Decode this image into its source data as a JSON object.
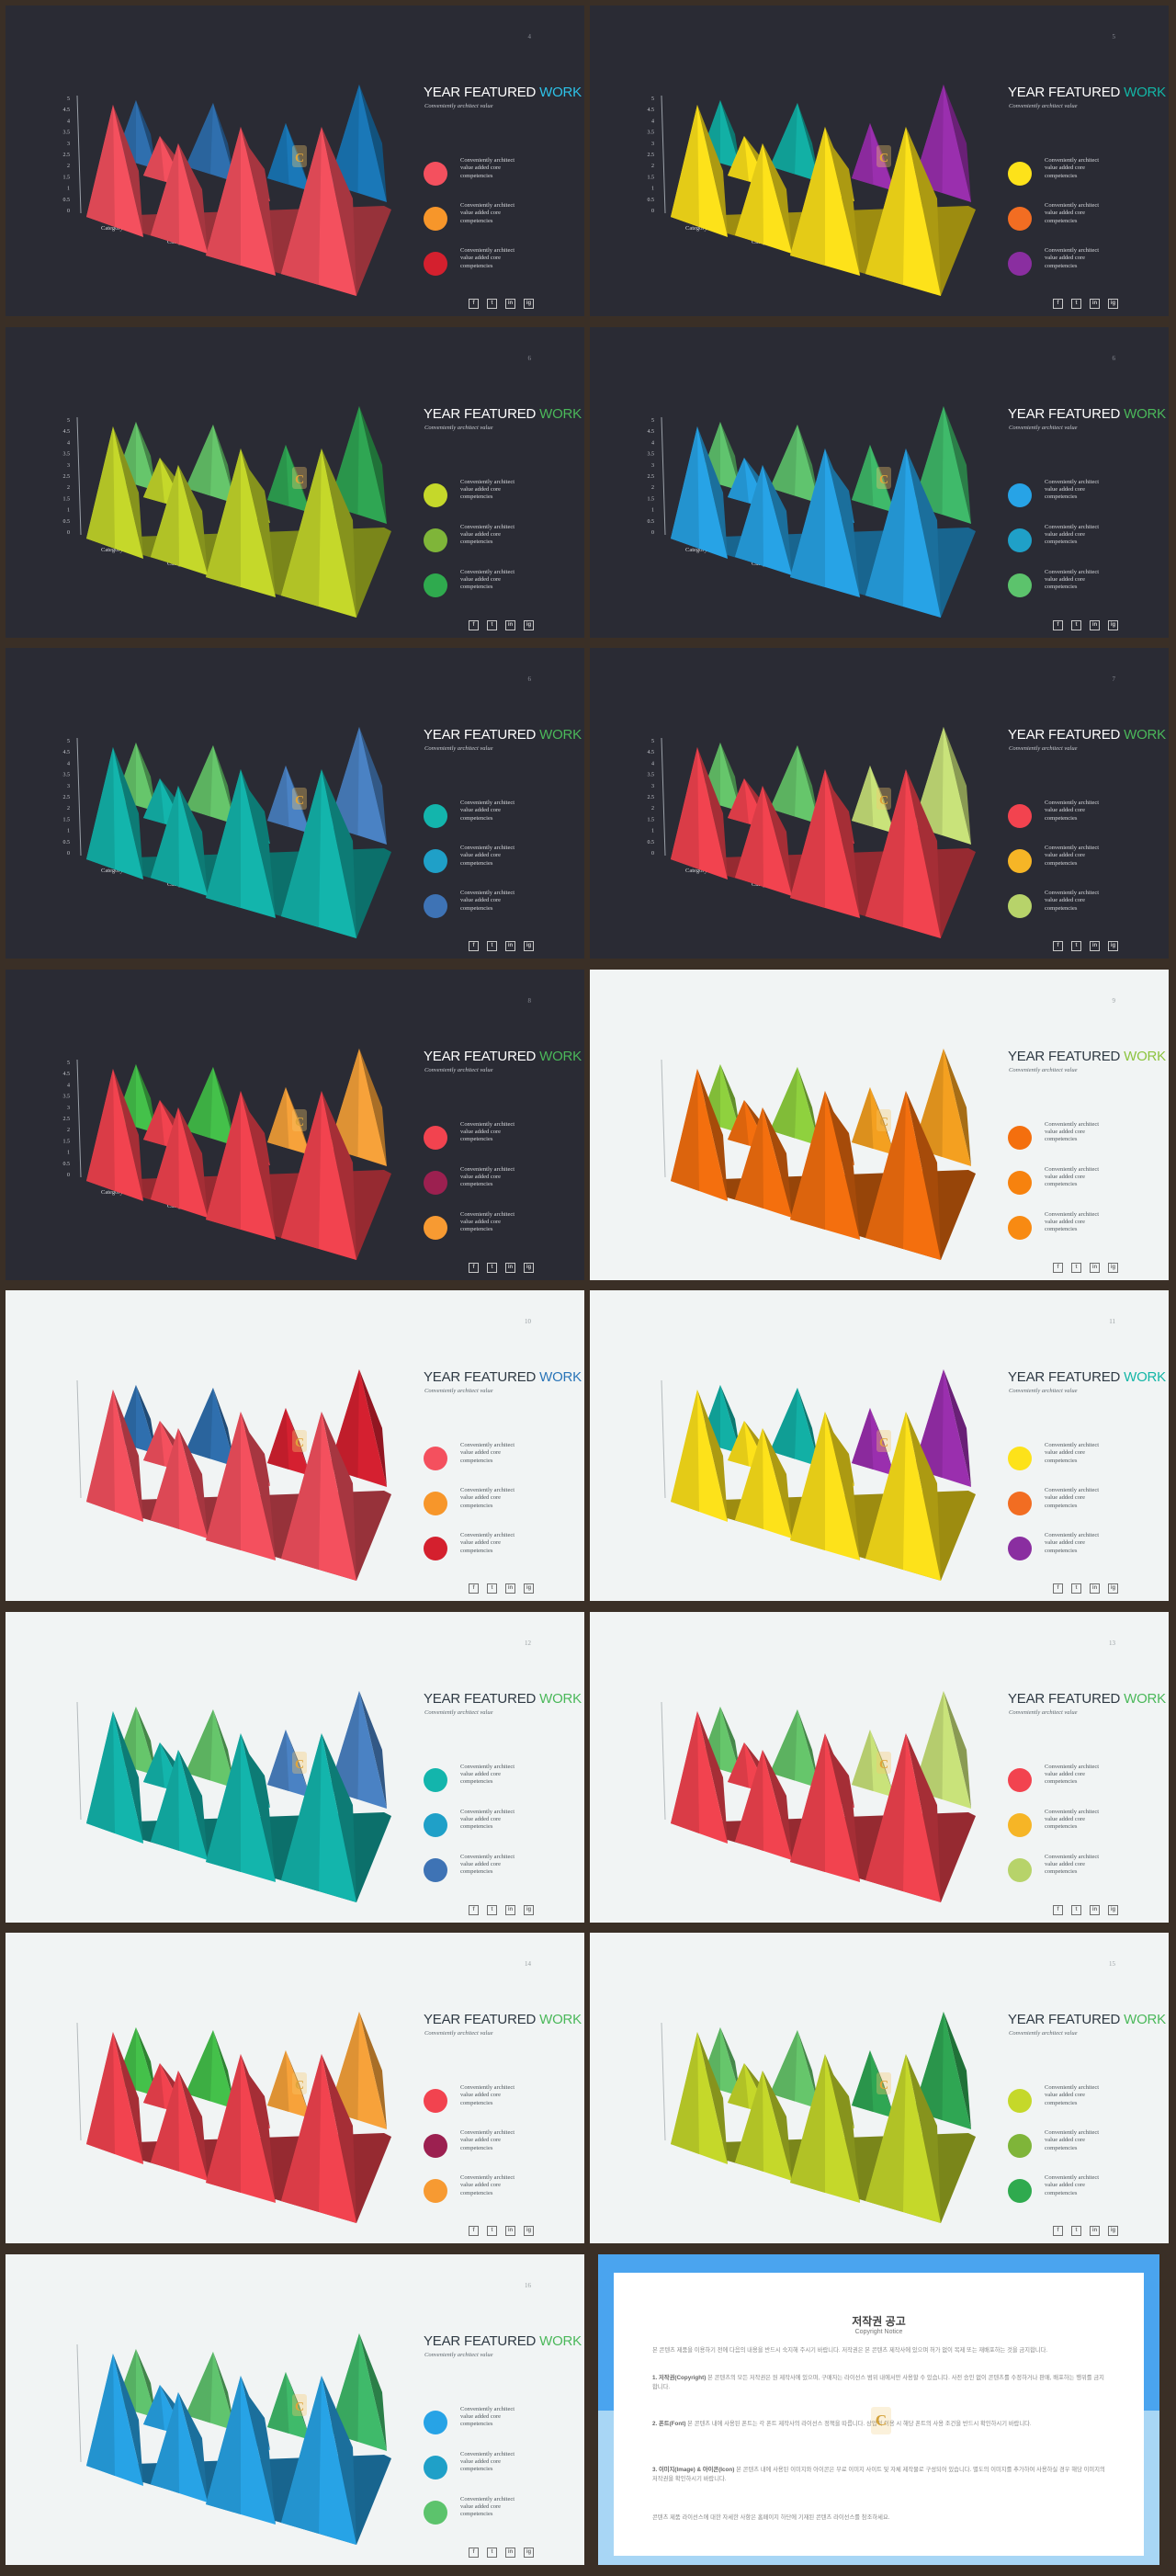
{
  "slides": [
    {
      "number": "4",
      "theme": "dark",
      "title_main": "YEAR FEATURED",
      "title_accent": "WORK",
      "accent": "#2dc2e8",
      "subtitle": "Conveniently architect value",
      "colors": [
        "#f4505e",
        "#f7962a",
        "#d4202e"
      ],
      "alt": [
        "#2f6fae",
        "#1a78b8"
      ],
      "axis": true
    },
    {
      "number": "5",
      "theme": "dark",
      "title_main": "YEAR FEATURED",
      "title_accent": "WORK",
      "accent": "#13b6a6",
      "subtitle": "Conveniently architect value",
      "colors": [
        "#fde21a",
        "#f26d22",
        "#8a2ea0"
      ],
      "alt": [
        "#12b0a5",
        "#9a2fae"
      ],
      "axis": true
    },
    {
      "number": "6",
      "theme": "dark",
      "title_main": "YEAR FEATURED",
      "title_accent": "WORK",
      "accent": "#4bb85a",
      "subtitle": "Conveniently architect value",
      "colors": [
        "#c5d82a",
        "#7fb539",
        "#2faa4e"
      ],
      "alt": [
        "#66c66b",
        "#2fa653"
      ],
      "axis": true
    },
    {
      "number": "6",
      "theme": "dark",
      "title_main": "YEAR FEATURED",
      "title_accent": "WORK",
      "accent": "#4bb85a",
      "subtitle": "Conveniently architect value",
      "colors": [
        "#27a3e6",
        "#1fa0c8",
        "#5cc36c"
      ],
      "alt": [
        "#60c46e",
        "#3fba6a"
      ],
      "axis": true
    },
    {
      "number": "6",
      "theme": "dark",
      "title_main": "YEAR FEATURED",
      "title_accent": "WORK",
      "accent": "#4bb85a",
      "subtitle": "Conveniently architect value",
      "colors": [
        "#13b5ac",
        "#1fa0c8",
        "#3e73b5"
      ],
      "alt": [
        "#66c66b",
        "#4a82c4"
      ],
      "axis": true
    },
    {
      "number": "7",
      "theme": "dark",
      "title_main": "YEAR FEATURED",
      "title_accent": "WORK",
      "accent": "#4bb85a",
      "subtitle": "Conveniently architect value",
      "colors": [
        "#f2434f",
        "#f6b526",
        "#b7d36a"
      ],
      "alt": [
        "#66c66b",
        "#c9e37a"
      ],
      "axis": true
    },
    {
      "number": "8",
      "theme": "dark",
      "title_main": "YEAR FEATURED",
      "title_accent": "WORK",
      "accent": "#4bb85a",
      "subtitle": "Conveniently architect value",
      "colors": [
        "#f2434f",
        "#9c2050",
        "#f79a32"
      ],
      "alt": [
        "#44c14a",
        "#f7a23a"
      ],
      "axis": true
    },
    {
      "number": "9",
      "theme": "light",
      "title_main": "YEAR FEATURED",
      "title_accent": "WORK",
      "accent": "#8cc43f",
      "subtitle": "Conveniently architect value",
      "colors": [
        "#f46f0e",
        "#f7820e",
        "#f88a12"
      ],
      "alt": [
        "#8fd13e",
        "#f4a020"
      ],
      "axis": false
    },
    {
      "number": "10",
      "theme": "light",
      "title_main": "YEAR FEATURED",
      "title_accent": "WORK",
      "accent": "#2a75b8",
      "subtitle": "Conveniently architect value",
      "colors": [
        "#f4505e",
        "#f7962a",
        "#d4202e"
      ],
      "alt": [
        "#2f6fae",
        "#d52030"
      ],
      "axis": false
    },
    {
      "number": "11",
      "theme": "light",
      "title_main": "YEAR FEATURED",
      "title_accent": "WORK",
      "accent": "#13b6a6",
      "subtitle": "Conveniently architect value",
      "colors": [
        "#fde21a",
        "#f26d22",
        "#8a2ea0"
      ],
      "alt": [
        "#12b0a5",
        "#9a2fae"
      ],
      "axis": false
    },
    {
      "number": "12",
      "theme": "light",
      "title_main": "YEAR FEATURED",
      "title_accent": "WORK",
      "accent": "#4bb85a",
      "subtitle": "Conveniently architect value",
      "colors": [
        "#13b5ac",
        "#1fa0c8",
        "#3e73b5"
      ],
      "alt": [
        "#66c66b",
        "#4a82c4"
      ],
      "axis": false
    },
    {
      "number": "13",
      "theme": "light",
      "title_main": "YEAR FEATURED",
      "title_accent": "WORK",
      "accent": "#4bb85a",
      "subtitle": "Conveniently architect value",
      "colors": [
        "#f2434f",
        "#f6b526",
        "#b7d36a"
      ],
      "alt": [
        "#66c66b",
        "#c9e37a"
      ],
      "axis": false
    },
    {
      "number": "14",
      "theme": "light",
      "title_main": "YEAR FEATURED",
      "title_accent": "WORK",
      "accent": "#4bb85a",
      "subtitle": "Conveniently architect value",
      "colors": [
        "#f2434f",
        "#9c2050",
        "#f79a32"
      ],
      "alt": [
        "#44c14a",
        "#f7a23a"
      ],
      "axis": false
    },
    {
      "number": "15",
      "theme": "light",
      "title_main": "YEAR FEATURED",
      "title_accent": "WORK",
      "accent": "#4bb85a",
      "subtitle": "Conveniently architect value",
      "colors": [
        "#c5d82a",
        "#7fb539",
        "#2faa4e"
      ],
      "alt": [
        "#66c66b",
        "#2fa653"
      ],
      "axis": false
    },
    {
      "number": "16",
      "theme": "light",
      "title_main": "YEAR FEATURED",
      "title_accent": "WORK",
      "accent": "#4bb85a",
      "subtitle": "Conveniently architect value",
      "colors": [
        "#27a3e6",
        "#1fa0c8",
        "#5cc36c"
      ],
      "alt": [
        "#60c46e",
        "#3fba6a"
      ],
      "axis": false
    }
  ],
  "legend_text": [
    "Conveniently architect",
    "value added core",
    "competencies"
  ],
  "legend_text_mid": "value added core",
  "social_icons": [
    "f",
    "t",
    "in",
    "ig"
  ],
  "chart_data": {
    "type": "bar",
    "categories": [
      "Category 1",
      "Category 2",
      "Category 3",
      "Category 4"
    ],
    "y_ticks": [
      "5",
      "4.5",
      "4",
      "3.5",
      "3",
      "2.5",
      "2",
      "1.5",
      "1",
      "0.5",
      "0"
    ],
    "ylim": [
      0,
      5
    ]
  },
  "copyright": {
    "title": "저작권 공고",
    "subtitle": "Copyright Notice",
    "intro": "본 콘텐츠 제품을 이용하기 전에 다음의 내용을 반드시 숙지해 주시기 바랍니다. 저작권은 본 콘텐츠 제작사에 있으며 허가 없이 복제 또는 재배포하는 것을 금지합니다.",
    "p1_head": "1. 저작권(Copyright)",
    "p1": "본 콘텐츠의 모든 저작권은 원 제작사에 있으며, 구매자는 라이선스 범위 내에서만 사용할 수 있습니다. 사전 승인 없이 콘텐츠를 수정하거나 판매, 배포하는 행위를 금지합니다.",
    "p2_head": "2. 폰트(Font)",
    "p2": "본 콘텐츠 내에 사용된 폰트는 각 폰트 제작사의 라이선스 정책을 따릅니다. 상업적 이용 시 해당 폰트의 사용 조건을 반드시 확인하시기 바랍니다.",
    "p3_head": "3. 이미지(Image) & 아이콘(Icon)",
    "p3": "본 콘텐츠 내에 사용된 이미지와 아이콘은 무료 이미지 사이트 및 자체 제작물로 구성되어 있습니다. 별도의 이미지를 추가하여 사용하실 경우 해당 이미지의 저작권을 확인하시기 바랍니다.",
    "outro": "콘텐츠 제품 라이선스에 대한 자세한 사항은 홈페이지 하단에 기재된 콘텐츠 라이선스를 참조하세요.",
    "watermark": "C"
  }
}
